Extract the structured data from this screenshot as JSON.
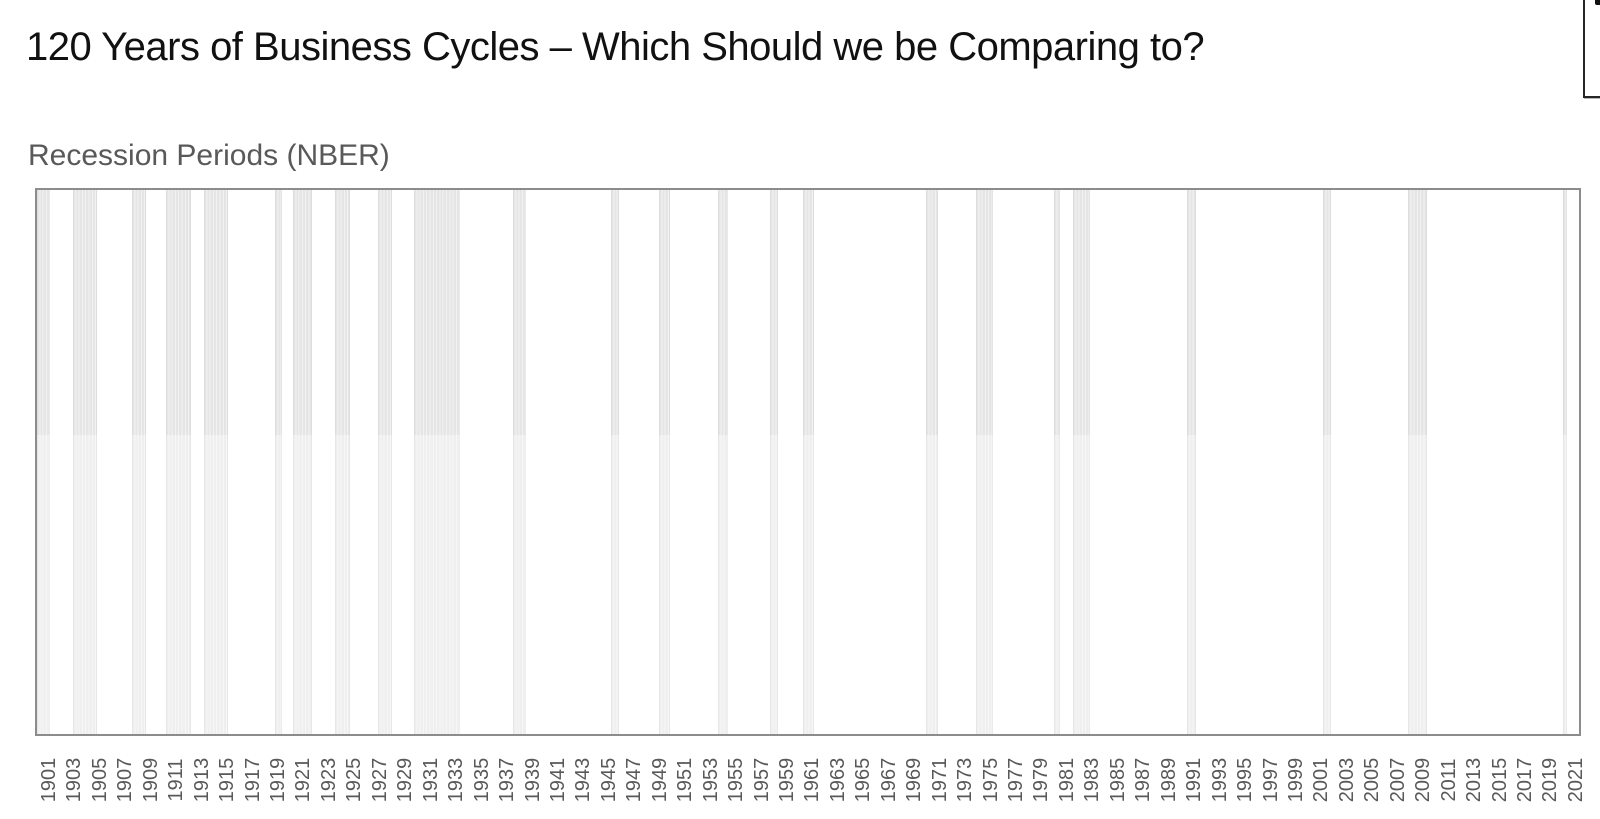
{
  "slide": {
    "title": "120 Years of Business Cycles – Which Should we be Comparing to?"
  },
  "chart": {
    "title": "Recession Periods (NBER)"
  },
  "colors": {
    "title_text": "#111111",
    "chart_title_text": "#595959",
    "axis_label_text": "#595959",
    "plot_border": "#8c8c8c",
    "band_fill": "#e5e5e5",
    "band_stripe": "#f2f2f2",
    "background": "#ffffff"
  },
  "chart_data": {
    "type": "bar",
    "subtype": "recession-period-bands",
    "title": "Recession Periods (NBER)",
    "xlabel": "",
    "ylabel": "",
    "grid": false,
    "legend": false,
    "x_domain": [
      1899.9,
      2021.4
    ],
    "x_tick_labels": [
      "1901",
      "1903",
      "1905",
      "1907",
      "1909",
      "1911",
      "1913",
      "1915",
      "1917",
      "1919",
      "1921",
      "1923",
      "1925",
      "1927",
      "1929",
      "1931",
      "1933",
      "1935",
      "1937",
      "1939",
      "1941",
      "1943",
      "1945",
      "1947",
      "1949",
      "1951",
      "1953",
      "1955",
      "1957",
      "1959",
      "1961",
      "1963",
      "1965",
      "1967",
      "1969",
      "1971",
      "1973",
      "1975",
      "1977",
      "1979",
      "1981",
      "1983",
      "1985",
      "1987",
      "1989",
      "1991",
      "1993",
      "1995",
      "1997",
      "1999",
      "2001",
      "2003",
      "2005",
      "2007",
      "2009",
      "2011",
      "2013",
      "2015",
      "2017",
      "2019",
      "2021"
    ],
    "recessions": [
      {
        "period": "Jun 1899 – Dec 1900",
        "start": 1899.46,
        "end": 1900.96
      },
      {
        "period": "Sep 1902 – Aug 1904",
        "start": 1902.71,
        "end": 1904.63
      },
      {
        "period": "May 1907 – Jun 1908",
        "start": 1907.38,
        "end": 1908.46
      },
      {
        "period": "Jan 1910 – Jan 1912",
        "start": 1910.04,
        "end": 1912.04
      },
      {
        "period": "Jan 1913 – Dec 1914",
        "start": 1913.04,
        "end": 1914.96
      },
      {
        "period": "Aug 1918 – Mar 1919",
        "start": 1918.63,
        "end": 1919.21
      },
      {
        "period": "Jan 1920 – Jul 1921",
        "start": 1920.04,
        "end": 1921.54
      },
      {
        "period": "May 1923 – Jul 1924",
        "start": 1923.38,
        "end": 1924.54
      },
      {
        "period": "Oct 1926 – Nov 1927",
        "start": 1926.79,
        "end": 1927.88
      },
      {
        "period": "Aug 1929 – Mar 1933",
        "start": 1929.63,
        "end": 1933.21
      },
      {
        "period": "May 1937 – Jun 1938",
        "start": 1937.38,
        "end": 1938.46
      },
      {
        "period": "Feb 1945 – Oct 1945",
        "start": 1945.13,
        "end": 1945.79
      },
      {
        "period": "Nov 1948 – Oct 1949",
        "start": 1948.88,
        "end": 1949.79
      },
      {
        "period": "Jul 1953 – May 1954",
        "start": 1953.54,
        "end": 1954.38
      },
      {
        "period": "Aug 1957 – Apr 1958",
        "start": 1957.63,
        "end": 1958.29
      },
      {
        "period": "Apr 1960 – Feb 1961",
        "start": 1960.29,
        "end": 1961.13
      },
      {
        "period": "Dec 1969 – Nov 1970",
        "start": 1969.96,
        "end": 1970.88
      },
      {
        "period": "Nov 1973 – Mar 1975",
        "start": 1973.88,
        "end": 1975.21
      },
      {
        "period": "Jan 1980 – Jul 1980",
        "start": 1980.04,
        "end": 1980.54
      },
      {
        "period": "Jul 1981 – Nov 1982",
        "start": 1981.54,
        "end": 1982.88
      },
      {
        "period": "Jul 1990 – Mar 1991",
        "start": 1990.54,
        "end": 1991.21
      },
      {
        "period": "Mar 2001 – Nov 2001",
        "start": 2001.21,
        "end": 2001.88
      },
      {
        "period": "Dec 2007 – Jun 2009",
        "start": 2007.96,
        "end": 2009.46
      },
      {
        "period": "Feb 2020 – Apr 2020",
        "start": 2020.13,
        "end": 2020.29
      }
    ]
  }
}
